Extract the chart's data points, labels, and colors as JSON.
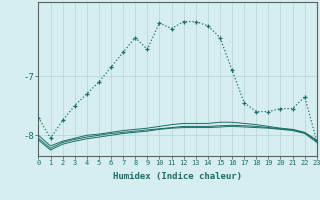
{
  "xlabel": "Humidex (Indice chaleur)",
  "x_values": [
    0,
    1,
    2,
    3,
    4,
    5,
    6,
    7,
    8,
    9,
    10,
    11,
    12,
    13,
    14,
    15,
    16,
    17,
    18,
    19,
    20,
    21,
    22,
    23
  ],
  "line1": [
    -7.7,
    -8.05,
    -7.75,
    -7.5,
    -7.3,
    -7.1,
    -6.85,
    -6.6,
    -6.35,
    -6.55,
    -6.1,
    -6.2,
    -6.08,
    -6.08,
    -6.15,
    -6.35,
    -6.9,
    -7.45,
    -7.6,
    -7.6,
    -7.55,
    -7.55,
    -7.35,
    -8.1
  ],
  "line2": [
    -8.0,
    -8.18,
    -8.1,
    -8.05,
    -8.0,
    -7.98,
    -7.95,
    -7.92,
    -7.9,
    -7.88,
    -7.85,
    -7.82,
    -7.8,
    -7.8,
    -7.8,
    -7.78,
    -7.78,
    -7.8,
    -7.82,
    -7.85,
    -7.88,
    -7.9,
    -7.95,
    -8.08
  ],
  "line3": [
    -8.05,
    -8.22,
    -8.12,
    -8.07,
    -8.03,
    -8.0,
    -7.97,
    -7.95,
    -7.93,
    -7.91,
    -7.89,
    -7.87,
    -7.85,
    -7.85,
    -7.85,
    -7.84,
    -7.83,
    -7.84,
    -7.85,
    -7.87,
    -7.89,
    -7.91,
    -7.96,
    -8.1
  ],
  "line4": [
    -8.08,
    -8.25,
    -8.15,
    -8.1,
    -8.06,
    -8.03,
    -8.0,
    -7.97,
    -7.95,
    -7.93,
    -7.9,
    -7.88,
    -7.87,
    -7.87,
    -7.87,
    -7.86,
    -7.85,
    -7.86,
    -7.87,
    -7.88,
    -7.9,
    -7.92,
    -7.97,
    -8.12
  ],
  "bg_color": "#d6eef0",
  "line_color": "#1a6e65",
  "grid_color": "#b8d4d6",
  "ylim": [
    -8.35,
    -5.75
  ],
  "xlim": [
    0,
    23
  ],
  "yticks": [
    -8,
    -7
  ],
  "xticks": [
    0,
    1,
    2,
    3,
    4,
    5,
    6,
    7,
    8,
    9,
    10,
    11,
    12,
    13,
    14,
    15,
    16,
    17,
    18,
    19,
    20,
    21,
    22,
    23
  ]
}
